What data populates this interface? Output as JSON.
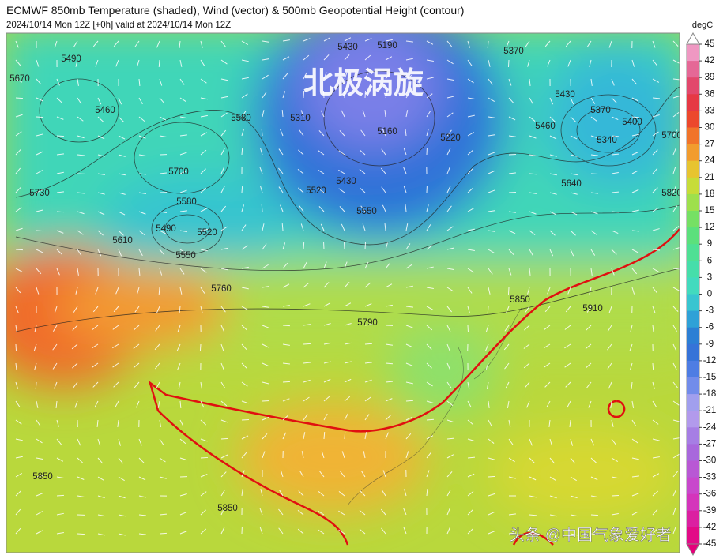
{
  "header": {
    "title": "ECMWF 850mb Temperature (shaded), Wind (vector) & 500mb Geopotential Height (contour)",
    "subtitle": "2024/10/14 Mon 12Z [+0h] valid at 2024/10/14 Mon 12Z"
  },
  "overlay_text": "北极涡旋",
  "watermark": "头条 @中国气象爱好者",
  "colorbar": {
    "unit": "degC",
    "ticks": [
      45,
      42,
      39,
      36,
      33,
      30,
      27,
      24,
      21,
      18,
      15,
      12,
      9,
      6,
      3,
      0,
      -3,
      -6,
      -9,
      -12,
      -15,
      -18,
      -21,
      -24,
      -27,
      -30,
      -33,
      -36,
      -39,
      -42,
      -45
    ]
  },
  "contour_labels": [
    "5490",
    "5670",
    "5460",
    "5580",
    "5700",
    "5730",
    "5580",
    "5490",
    "5520",
    "5610",
    "5550",
    "5430",
    "5190",
    "5310",
    "5160",
    "5220",
    "5430",
    "5550",
    "5520",
    "5370",
    "5430",
    "5370",
    "5340",
    "5460",
    "5400",
    "5700",
    "5640",
    "5820",
    "5760",
    "5790",
    "5850",
    "5910",
    "5850",
    "5850"
  ]
}
